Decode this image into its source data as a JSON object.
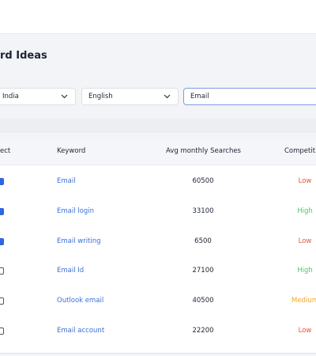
{
  "header": {
    "title": "rd Ideas"
  },
  "filters": {
    "country": "India",
    "language": "English",
    "search": "Email"
  },
  "table": {
    "columns": [
      "ect",
      "Keyword",
      "Avg monthly Searches",
      "Competiti"
    ],
    "rows": [
      {
        "checked": true,
        "keyword": "Email",
        "searches": "60500",
        "competition": "Low"
      },
      {
        "checked": true,
        "keyword": "Email login",
        "searches": "33100",
        "competition": "High"
      },
      {
        "checked": true,
        "keyword": "Email writing",
        "searches": "6500",
        "competition": "Low"
      },
      {
        "checked": false,
        "keyword": "Email Id",
        "searches": "27100",
        "competition": "High"
      },
      {
        "checked": false,
        "keyword": "Outlook email",
        "searches": "40500",
        "competition": "Medium"
      },
      {
        "checked": false,
        "keyword": "Email account",
        "searches": "22200",
        "competition": "Low"
      }
    ],
    "competition_colors": {
      "Low": "#e5533d",
      "High": "#4cc76a",
      "Medium": "#f5a623"
    }
  }
}
